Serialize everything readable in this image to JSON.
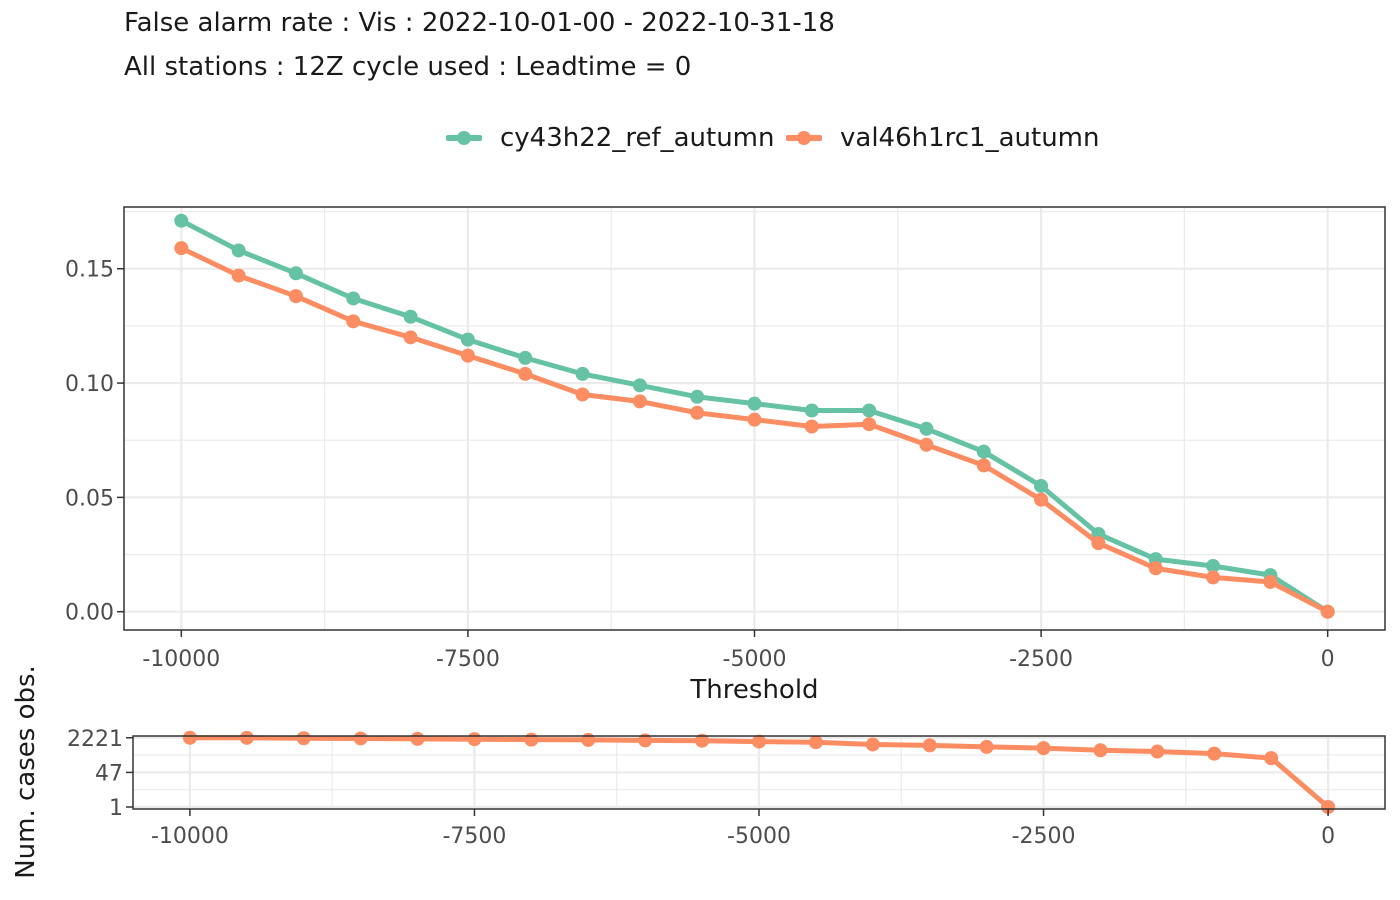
{
  "header": {
    "title": "False alarm rate : Vis : 2022-10-01-00 - 2022-10-31-18",
    "subtitle": "All stations : 12Z cycle used : Leadtime = 0"
  },
  "colors": {
    "cy43h22_ref_autumn": "#66c2a5",
    "val46h1rc1_autumn": "#fc8d62",
    "panel_border": "#333333",
    "grid": "#ebebeb"
  },
  "chart_data": [
    {
      "type": "line",
      "xlabel": "Threshold",
      "ylabel": "",
      "xlim": [
        -10500,
        500
      ],
      "ylim": [
        -0.008,
        0.177
      ],
      "x": [
        -10000,
        -9500,
        -9000,
        -8500,
        -8000,
        -7500,
        -7000,
        -6500,
        -6000,
        -5500,
        -5000,
        -4500,
        -4000,
        -3500,
        -3000,
        -2500,
        -2000,
        -1500,
        -1000,
        -500,
        0
      ],
      "x_ticks": [
        -10000,
        -7500,
        -5000,
        -2500,
        0
      ],
      "x_tick_labels": [
        "-10000",
        "-7500",
        "-5000",
        "-2500",
        "0"
      ],
      "y_ticks": [
        0,
        0.05,
        0.1,
        0.15
      ],
      "y_tick_labels": [
        "0.00",
        "0.05",
        "0.10",
        "0.15"
      ],
      "legend_position": "top",
      "grid": true,
      "series": [
        {
          "name": "cy43h22_ref_autumn",
          "values": [
            0.171,
            0.158,
            0.148,
            0.137,
            0.129,
            0.119,
            0.111,
            0.104,
            0.099,
            0.094,
            0.091,
            0.088,
            0.088,
            0.08,
            0.07,
            0.055,
            0.034,
            0.023,
            0.02,
            0.016,
            0.0
          ]
        },
        {
          "name": "val46h1rc1_autumn",
          "values": [
            0.159,
            0.147,
            0.138,
            0.127,
            0.12,
            0.112,
            0.104,
            0.095,
            0.092,
            0.087,
            0.084,
            0.081,
            0.082,
            0.073,
            0.064,
            0.049,
            0.03,
            0.019,
            0.015,
            0.013,
            0.0
          ]
        }
      ]
    },
    {
      "type": "line",
      "xlabel": "",
      "ylabel": "Num. cases obs.",
      "y_scale": "log",
      "xlim": [
        -10500,
        500
      ],
      "x": [
        -10000,
        -9500,
        -9000,
        -8500,
        -8000,
        -7500,
        -7000,
        -6500,
        -6000,
        -5500,
        -5000,
        -4500,
        -4000,
        -3500,
        -3000,
        -2500,
        -2000,
        -1500,
        -1000,
        -500,
        0
      ],
      "x_ticks": [
        -10000,
        -7500,
        -5000,
        -2500,
        0
      ],
      "x_tick_labels": [
        "-10000",
        "-7500",
        "-5000",
        "-2500",
        "0"
      ],
      "y_ticks": [
        1,
        47,
        2221
      ],
      "y_tick_labels": [
        "1",
        "47",
        "2221"
      ],
      "grid": true,
      "series": [
        {
          "name": "val46h1rc1_autumn",
          "values": [
            2221,
            2200,
            2100,
            2050,
            1950,
            1900,
            1800,
            1750,
            1650,
            1600,
            1450,
            1350,
            1050,
            950,
            800,
            700,
            550,
            480,
            380,
            230,
            1
          ]
        }
      ]
    }
  ]
}
